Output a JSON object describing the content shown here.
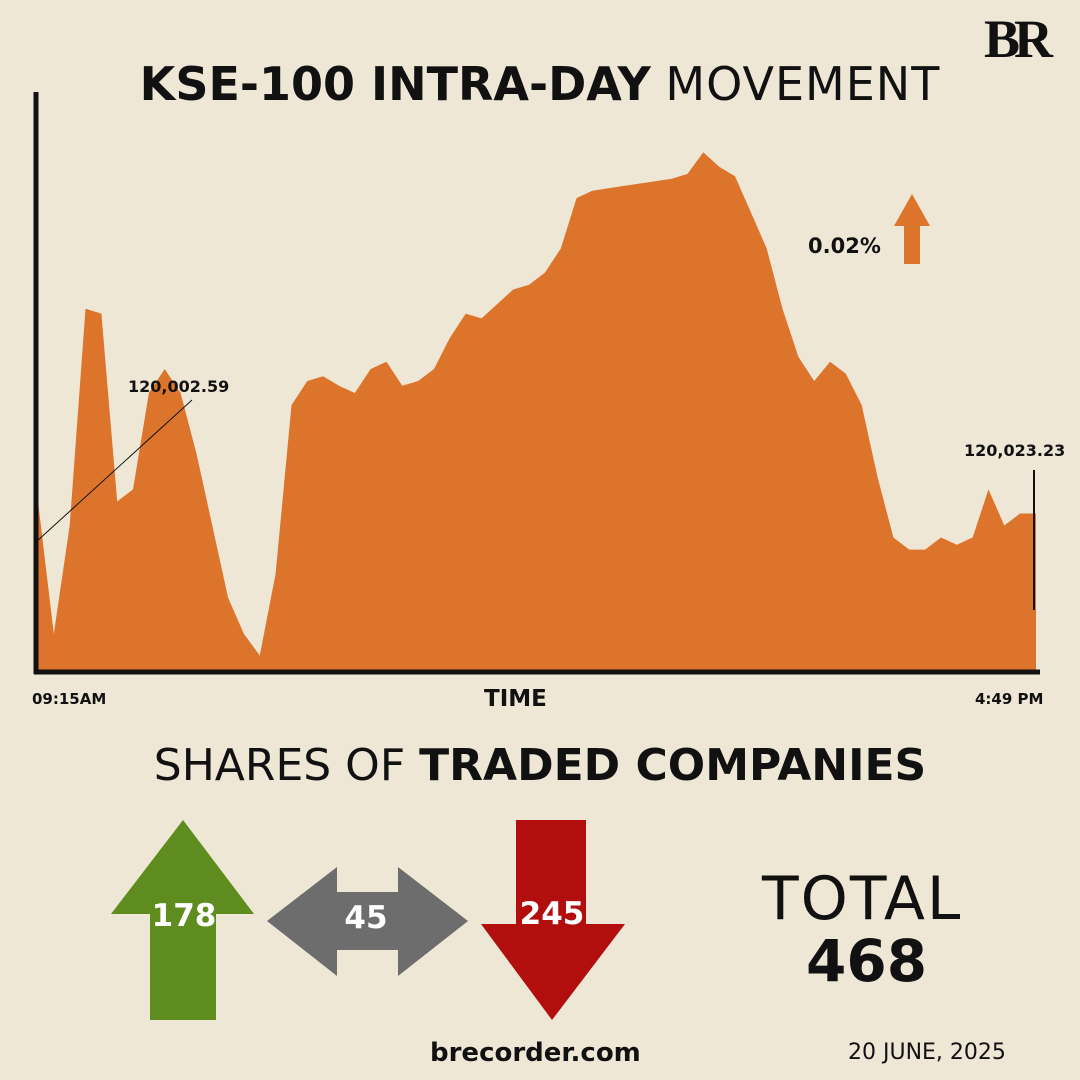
{
  "brand": {
    "logo_text": "BR",
    "site": "brecorder.com"
  },
  "header": {
    "title_bold": "KSE-100 INTRA-DAY",
    "title_light": "MOVEMENT"
  },
  "chart_data": {
    "type": "area",
    "title": "KSE-100 INTRA-DAY MOVEMENT",
    "xlabel": "TIME",
    "ylabel": "",
    "x_start_label": "09:15AM",
    "x_end_label": "4:49 PM",
    "change_label": "0.02%",
    "change_direction": "up",
    "annotations": [
      {
        "label": "120,002.59",
        "note": "open"
      },
      {
        "label": "120,023.23",
        "note": "close"
      }
    ],
    "color": "#dd742c",
    "ylim": [
      118800,
      121200
    ],
    "series": [
      {
        "values": [
          119500,
          118950,
          119400,
          120300,
          120280,
          119500,
          119550,
          119950,
          120050,
          119950,
          119700,
          119400,
          119100,
          118950,
          118860,
          119200,
          119900,
          120000,
          120020,
          119980,
          119950,
          120050,
          120080,
          119980,
          120000,
          120050,
          120180,
          120280,
          120260,
          120320,
          120380,
          120400,
          120450,
          120550,
          120760,
          120790,
          120800,
          120810,
          120820,
          120830,
          120840,
          120860,
          120950,
          120890,
          120850,
          120700,
          120550,
          120300,
          120100,
          120000,
          120080,
          120030,
          119900,
          119600,
          119350,
          119300,
          119300,
          119350,
          119320,
          119350,
          119550,
          119400,
          119450,
          119450
        ]
      }
    ]
  },
  "breadth": {
    "heading_light": "SHARES OF",
    "heading_bold": "TRADED COMPANIES",
    "advancers": 178,
    "unchanged": 45,
    "decliners": 245,
    "total_label": "TOTAL",
    "total": 468,
    "colors": {
      "advancers": "#5e8c1f",
      "unchanged": "#6d6d6d",
      "decliners": "#b30e0e"
    }
  },
  "date": "20 JUNE, 2025"
}
